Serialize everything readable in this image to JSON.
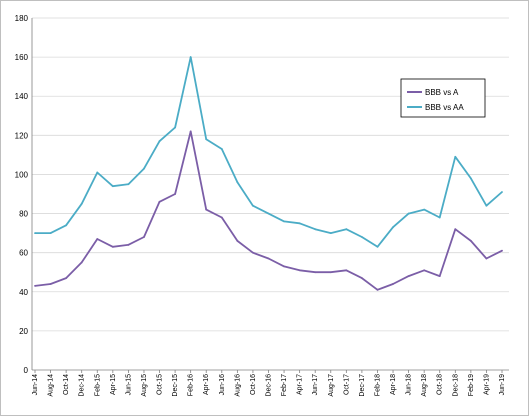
{
  "chart_data": {
    "type": "line",
    "title": "",
    "xlabel": "",
    "ylabel": "",
    "ylim": [
      0,
      180
    ],
    "yticks": [
      0,
      20,
      40,
      60,
      80,
      100,
      120,
      140,
      160,
      180
    ],
    "grid": "horizontal",
    "legend_position": "right",
    "x": [
      "Jun-14",
      "Aug-14",
      "Oct-14",
      "Dec-14",
      "Feb-15",
      "Apr-15",
      "Jun-15",
      "Aug-15",
      "Oct-15",
      "Dec-15",
      "Feb-16",
      "Apr-16",
      "Jun-16",
      "Aug-16",
      "Oct-16",
      "Dec-16",
      "Feb-17",
      "Apr-17",
      "Jun-17",
      "Aug-17",
      "Oct-17",
      "Dec-17",
      "Feb-18",
      "Apr-18",
      "Jun-18",
      "Aug-18",
      "Oct-18",
      "Dec-18",
      "Feb-19",
      "Apr-19",
      "Jun-19"
    ],
    "series": [
      {
        "name": "BBB vs A",
        "color": "#7b5ea7",
        "values": [
          43,
          44,
          47,
          55,
          67,
          63,
          64,
          68,
          86,
          90,
          122,
          82,
          78,
          66,
          60,
          57,
          53,
          51,
          50,
          50,
          51,
          47,
          41,
          44,
          48,
          51,
          48,
          72,
          66,
          57,
          61
        ]
      },
      {
        "name": "BBB vs AA",
        "color": "#4bacc6",
        "values": [
          70,
          70,
          74,
          85,
          101,
          94,
          95,
          103,
          117,
          124,
          160,
          118,
          113,
          96,
          84,
          80,
          76,
          75,
          72,
          70,
          72,
          68,
          63,
          73,
          80,
          82,
          78,
          109,
          98,
          84,
          91
        ]
      }
    ]
  }
}
